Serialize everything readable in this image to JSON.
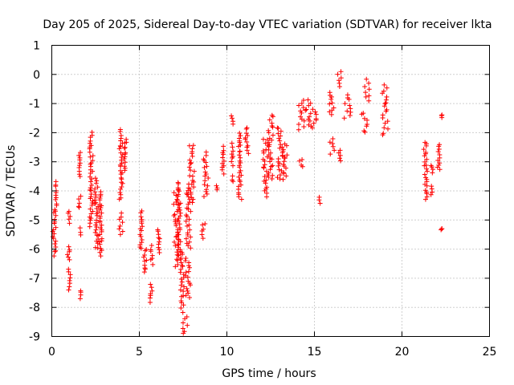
{
  "chart_data": {
    "type": "scatter",
    "title": "Day 205 of 2025, Sidereal Day-to-day VTEC variation (SDTVAR) for receiver lkta",
    "xlabel": "GPS time / hours",
    "ylabel": "SDTVAR / TECUs",
    "xlim": [
      0,
      25
    ],
    "ylim": [
      -9,
      1
    ],
    "xticks": [
      0,
      5,
      10,
      15,
      20,
      25
    ],
    "yticks": [
      1,
      0,
      -1,
      -2,
      -3,
      -4,
      -5,
      -6,
      -7,
      -8,
      -9
    ],
    "grid": true,
    "marker": "plus",
    "color": "#ff0000",
    "segments": [
      [
        0.0,
        0.3,
        -6.2,
        -4.6
      ],
      [
        0.2,
        0.3,
        -4.5,
        -3.7
      ],
      [
        0.8,
        1.1,
        -6.4,
        -5.9
      ],
      [
        0.9,
        1.1,
        -7.4,
        -6.7
      ],
      [
        0.9,
        1.1,
        -5.1,
        -4.7
      ],
      [
        1.6,
        1.7,
        -7.7,
        -7.4
      ],
      [
        1.6,
        1.7,
        -5.5,
        -5.3
      ],
      [
        1.5,
        1.7,
        -4.6,
        -4.2
      ],
      [
        1.5,
        1.7,
        -3.5,
        -2.7
      ],
      [
        2.1,
        2.4,
        -5.2,
        -2.0
      ],
      [
        2.4,
        2.7,
        -6.0,
        -3.6
      ],
      [
        2.7,
        2.9,
        -6.2,
        -4.0
      ],
      [
        3.8,
        4.1,
        -5.5,
        -4.8
      ],
      [
        3.8,
        4.1,
        -4.3,
        -1.9
      ],
      [
        4.1,
        4.3,
        -3.3,
        -2.2
      ],
      [
        5.0,
        5.2,
        -6.0,
        -4.7
      ],
      [
        5.2,
        5.5,
        -6.8,
        -6.0
      ],
      [
        5.5,
        5.7,
        -7.8,
        -7.5
      ],
      [
        5.6,
        5.8,
        -7.4,
        -7.2
      ],
      [
        5.6,
        5.8,
        -6.5,
        -5.9
      ],
      [
        6.0,
        6.2,
        -6.1,
        -5.3
      ],
      [
        6.9,
        7.3,
        -6.6,
        -4.0
      ],
      [
        7.1,
        7.4,
        -6.2,
        -3.7
      ],
      [
        7.3,
        7.6,
        -8.0,
        -6.1
      ],
      [
        7.4,
        7.8,
        -8.9,
        -8.2
      ],
      [
        7.5,
        8.0,
        -7.7,
        -6.3
      ],
      [
        7.6,
        8.0,
        -6.0,
        -3.8
      ],
      [
        7.8,
        8.2,
        -4.4,
        -2.4
      ],
      [
        8.5,
        8.8,
        -5.6,
        -5.1
      ],
      [
        8.6,
        9.0,
        -4.2,
        -2.7
      ],
      [
        9.2,
        9.5,
        -4.0,
        -3.8
      ],
      [
        9.7,
        9.9,
        -3.4,
        -2.5
      ],
      [
        10.2,
        10.4,
        -3.1,
        -2.4
      ],
      [
        10.2,
        10.4,
        -3.7,
        -3.5
      ],
      [
        10.2,
        10.4,
        -1.7,
        -1.4
      ],
      [
        10.6,
        10.9,
        -4.3,
        -2.0
      ],
      [
        11.0,
        11.3,
        -2.7,
        -1.8
      ],
      [
        12.0,
        12.4,
        -4.2,
        -2.2
      ],
      [
        12.3,
        12.7,
        -3.6,
        -1.4
      ],
      [
        12.8,
        13.3,
        -3.6,
        -1.8
      ],
      [
        13.1,
        13.5,
        -3.6,
        -2.4
      ],
      [
        14.1,
        14.4,
        -3.2,
        -2.9
      ],
      [
        14.0,
        14.5,
        -1.9,
        -0.9
      ],
      [
        14.4,
        14.9,
        -1.8,
        -0.9
      ],
      [
        14.8,
        15.2,
        -1.8,
        -1.2
      ],
      [
        15.2,
        15.4,
        -4.4,
        -4.2
      ],
      [
        15.8,
        16.2,
        -2.7,
        -2.2
      ],
      [
        15.8,
        16.2,
        -1.4,
        -0.6
      ],
      [
        16.2,
        16.6,
        -0.4,
        0.1
      ],
      [
        16.3,
        16.6,
        -3.0,
        -2.6
      ],
      [
        16.6,
        17.2,
        -1.5,
        -0.7
      ],
      [
        17.6,
        18.1,
        -2.0,
        -1.3
      ],
      [
        17.8,
        18.2,
        -0.9,
        -0.2
      ],
      [
        18.8,
        19.3,
        -2.1,
        -1.4
      ],
      [
        18.8,
        19.3,
        -1.3,
        -0.4
      ],
      [
        21.2,
        21.5,
        -4.3,
        -2.3
      ],
      [
        21.6,
        21.8,
        -4.1,
        -3.8
      ],
      [
        21.6,
        21.8,
        -3.4,
        -3.1
      ],
      [
        22.0,
        22.2,
        -3.3,
        -2.4
      ],
      [
        22.2,
        22.3,
        -5.3,
        -5.3
      ],
      [
        22.2,
        22.3,
        -1.5,
        -1.4
      ]
    ]
  }
}
